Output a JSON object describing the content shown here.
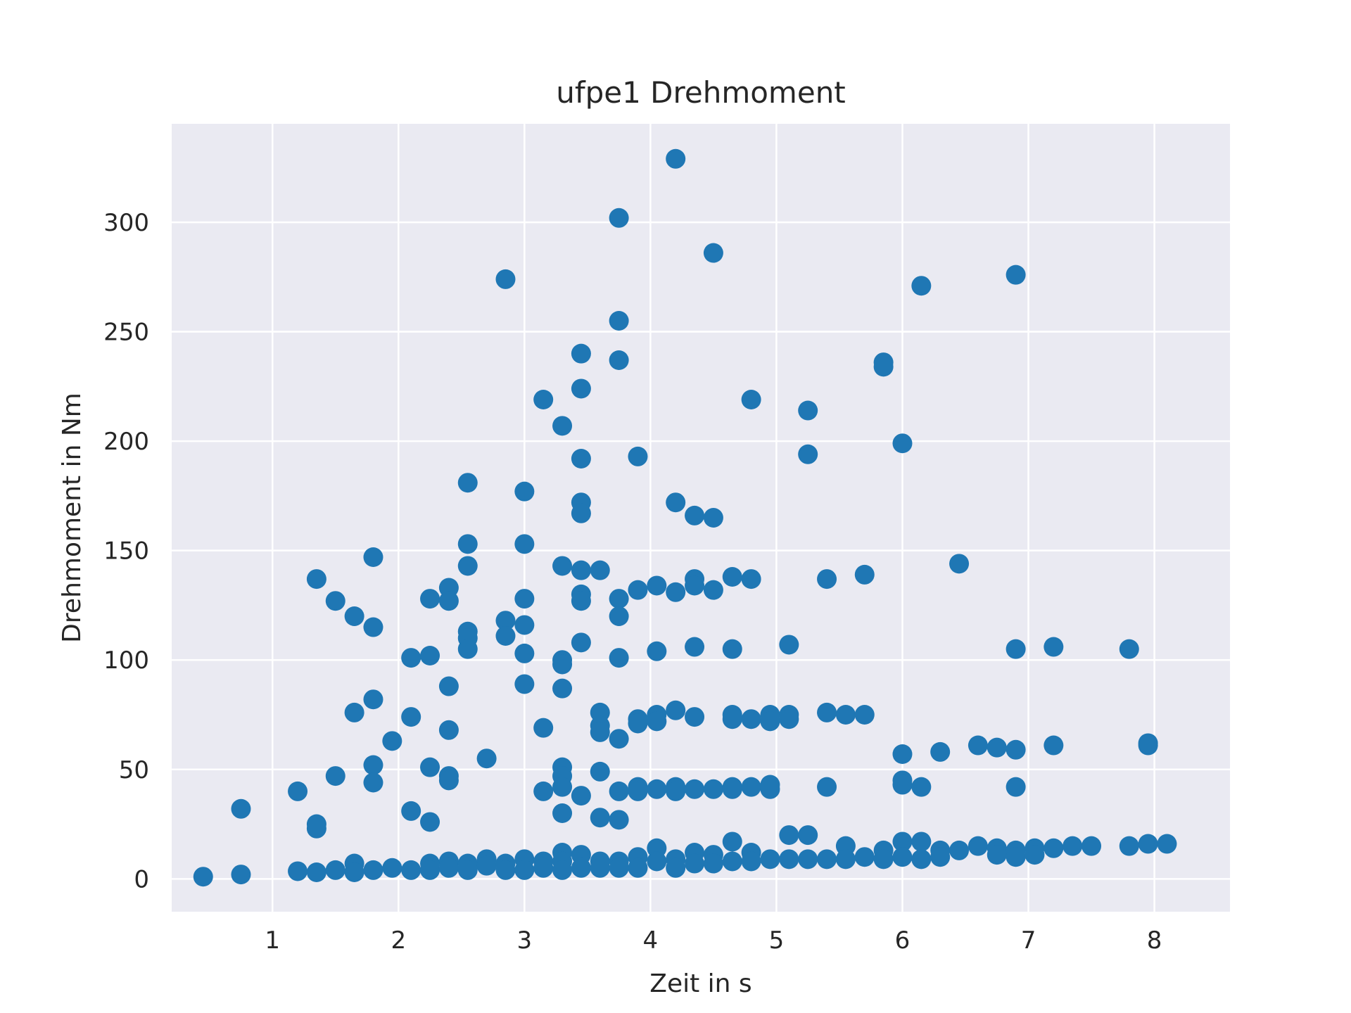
{
  "chart_data": {
    "type": "scatter",
    "title": "ufpe1 Drehmoment",
    "xlabel": "Zeit in s",
    "ylabel": "Drehmoment in Nm",
    "xlim": [
      0.2,
      8.6
    ],
    "ylim": [
      -15,
      345
    ],
    "xticks": [
      1,
      2,
      3,
      4,
      5,
      6,
      7,
      8
    ],
    "yticks": [
      0,
      50,
      100,
      150,
      200,
      250,
      300
    ],
    "grid": true,
    "background": "#eaeaf2",
    "grid_color": "#ffffff",
    "marker_color": "#1f77b4",
    "series": [
      {
        "points": [
          [
            0.45,
            1
          ],
          [
            0.75,
            32
          ],
          [
            0.75,
            2
          ],
          [
            1.2,
            40
          ],
          [
            1.2,
            3.5
          ],
          [
            1.35,
            137
          ],
          [
            1.35,
            25
          ],
          [
            1.35,
            23
          ],
          [
            1.35,
            3
          ],
          [
            1.5,
            127
          ],
          [
            1.5,
            47
          ],
          [
            1.5,
            4
          ],
          [
            1.65,
            120
          ],
          [
            1.65,
            76
          ],
          [
            1.65,
            7
          ],
          [
            1.65,
            3
          ],
          [
            1.8,
            147
          ],
          [
            1.8,
            115
          ],
          [
            1.8,
            82
          ],
          [
            1.8,
            52
          ],
          [
            1.8,
            44
          ],
          [
            1.8,
            4
          ],
          [
            1.95,
            63
          ],
          [
            1.95,
            5
          ],
          [
            2.1,
            101
          ],
          [
            2.1,
            74
          ],
          [
            2.1,
            31
          ],
          [
            2.1,
            4
          ],
          [
            2.25,
            128
          ],
          [
            2.25,
            102
          ],
          [
            2.25,
            51
          ],
          [
            2.25,
            26
          ],
          [
            2.25,
            7
          ],
          [
            2.25,
            4
          ],
          [
            2.4,
            133
          ],
          [
            2.4,
            127
          ],
          [
            2.4,
            88
          ],
          [
            2.4,
            68
          ],
          [
            2.4,
            47
          ],
          [
            2.4,
            45
          ],
          [
            2.4,
            8
          ],
          [
            2.4,
            5
          ],
          [
            2.55,
            181
          ],
          [
            2.55,
            153
          ],
          [
            2.55,
            143
          ],
          [
            2.55,
            113
          ],
          [
            2.55,
            110
          ],
          [
            2.55,
            105
          ],
          [
            2.55,
            7
          ],
          [
            2.55,
            4
          ],
          [
            2.7,
            55
          ],
          [
            2.7,
            9
          ],
          [
            2.7,
            6
          ],
          [
            2.85,
            274
          ],
          [
            2.85,
            118
          ],
          [
            2.85,
            111
          ],
          [
            2.85,
            7
          ],
          [
            2.85,
            4
          ],
          [
            3.0,
            177
          ],
          [
            3.0,
            153
          ],
          [
            3.0,
            128
          ],
          [
            3.0,
            116
          ],
          [
            3.0,
            103
          ],
          [
            3.0,
            89
          ],
          [
            3.0,
            9
          ],
          [
            3.0,
            4
          ],
          [
            3.15,
            219
          ],
          [
            3.15,
            69
          ],
          [
            3.15,
            40
          ],
          [
            3.15,
            8
          ],
          [
            3.15,
            5
          ],
          [
            3.3,
            207
          ],
          [
            3.3,
            143
          ],
          [
            3.3,
            100
          ],
          [
            3.3,
            98
          ],
          [
            3.3,
            87
          ],
          [
            3.3,
            51
          ],
          [
            3.3,
            47
          ],
          [
            3.3,
            42
          ],
          [
            3.3,
            30
          ],
          [
            3.3,
            12
          ],
          [
            3.3,
            8
          ],
          [
            3.3,
            4
          ],
          [
            3.45,
            240
          ],
          [
            3.45,
            224
          ],
          [
            3.45,
            192
          ],
          [
            3.45,
            172
          ],
          [
            3.45,
            167
          ],
          [
            3.45,
            141
          ],
          [
            3.45,
            130
          ],
          [
            3.45,
            127
          ],
          [
            3.45,
            108
          ],
          [
            3.45,
            38
          ],
          [
            3.45,
            11
          ],
          [
            3.45,
            5
          ],
          [
            3.6,
            141
          ],
          [
            3.6,
            76
          ],
          [
            3.6,
            70
          ],
          [
            3.6,
            67
          ],
          [
            3.6,
            49
          ],
          [
            3.6,
            28
          ],
          [
            3.6,
            8
          ],
          [
            3.6,
            5
          ],
          [
            3.75,
            302
          ],
          [
            3.75,
            255
          ],
          [
            3.75,
            237
          ],
          [
            3.75,
            128
          ],
          [
            3.75,
            120
          ],
          [
            3.75,
            101
          ],
          [
            3.75,
            64
          ],
          [
            3.75,
            40
          ],
          [
            3.75,
            27
          ],
          [
            3.75,
            8
          ],
          [
            3.75,
            5
          ],
          [
            3.9,
            193
          ],
          [
            3.9,
            132
          ],
          [
            3.9,
            73
          ],
          [
            3.9,
            71
          ],
          [
            3.9,
            42
          ],
          [
            3.9,
            40
          ],
          [
            3.9,
            10
          ],
          [
            3.9,
            5
          ],
          [
            4.05,
            134
          ],
          [
            4.05,
            104
          ],
          [
            4.05,
            75
          ],
          [
            4.05,
            72
          ],
          [
            4.05,
            41
          ],
          [
            4.05,
            14
          ],
          [
            4.05,
            8
          ],
          [
            4.2,
            329
          ],
          [
            4.2,
            172
          ],
          [
            4.2,
            131
          ],
          [
            4.2,
            77
          ],
          [
            4.2,
            42
          ],
          [
            4.2,
            40
          ],
          [
            4.2,
            9
          ],
          [
            4.2,
            5
          ],
          [
            4.35,
            166
          ],
          [
            4.35,
            137
          ],
          [
            4.35,
            134
          ],
          [
            4.35,
            106
          ],
          [
            4.35,
            74
          ],
          [
            4.35,
            41
          ],
          [
            4.35,
            12
          ],
          [
            4.35,
            7
          ],
          [
            4.5,
            286
          ],
          [
            4.5,
            165
          ],
          [
            4.5,
            132
          ],
          [
            4.5,
            41
          ],
          [
            4.5,
            11
          ],
          [
            4.5,
            7
          ],
          [
            4.65,
            138
          ],
          [
            4.65,
            105
          ],
          [
            4.65,
            75
          ],
          [
            4.65,
            73
          ],
          [
            4.65,
            42
          ],
          [
            4.65,
            41
          ],
          [
            4.65,
            17
          ],
          [
            4.65,
            8
          ],
          [
            4.8,
            219
          ],
          [
            4.8,
            137
          ],
          [
            4.8,
            73
          ],
          [
            4.8,
            42
          ],
          [
            4.8,
            12
          ],
          [
            4.8,
            8
          ],
          [
            4.95,
            75
          ],
          [
            4.95,
            72
          ],
          [
            4.95,
            43
          ],
          [
            4.95,
            41
          ],
          [
            4.95,
            9
          ],
          [
            5.1,
            107
          ],
          [
            5.1,
            75
          ],
          [
            5.1,
            73
          ],
          [
            5.1,
            20
          ],
          [
            5.1,
            9
          ],
          [
            5.25,
            214
          ],
          [
            5.25,
            194
          ],
          [
            5.25,
            20
          ],
          [
            5.25,
            9
          ],
          [
            5.4,
            137
          ],
          [
            5.4,
            76
          ],
          [
            5.4,
            42
          ],
          [
            5.4,
            9
          ],
          [
            5.55,
            75
          ],
          [
            5.55,
            15
          ],
          [
            5.55,
            9
          ],
          [
            5.7,
            139
          ],
          [
            5.7,
            75
          ],
          [
            5.7,
            10
          ],
          [
            5.85,
            236
          ],
          [
            5.85,
            234
          ],
          [
            5.85,
            13
          ],
          [
            5.85,
            9
          ],
          [
            6.0,
            199
          ],
          [
            6.0,
            57
          ],
          [
            6.0,
            45
          ],
          [
            6.0,
            43
          ],
          [
            6.0,
            17
          ],
          [
            6.0,
            10
          ],
          [
            6.15,
            271
          ],
          [
            6.15,
            42
          ],
          [
            6.15,
            17
          ],
          [
            6.15,
            9
          ],
          [
            6.3,
            58
          ],
          [
            6.3,
            13
          ],
          [
            6.3,
            10
          ],
          [
            6.45,
            144
          ],
          [
            6.45,
            13
          ],
          [
            6.6,
            61
          ],
          [
            6.6,
            15
          ],
          [
            6.75,
            60
          ],
          [
            6.75,
            14
          ],
          [
            6.75,
            11
          ],
          [
            6.9,
            276
          ],
          [
            6.9,
            105
          ],
          [
            6.9,
            59
          ],
          [
            6.9,
            42
          ],
          [
            6.9,
            13
          ],
          [
            6.9,
            10
          ],
          [
            7.05,
            14
          ],
          [
            7.05,
            11
          ],
          [
            7.2,
            106
          ],
          [
            7.2,
            61
          ],
          [
            7.2,
            14
          ],
          [
            7.35,
            15
          ],
          [
            7.5,
            15
          ],
          [
            7.8,
            105
          ],
          [
            7.8,
            15
          ],
          [
            7.95,
            62
          ],
          [
            7.95,
            61
          ],
          [
            7.95,
            16
          ],
          [
            8.1,
            16
          ]
        ]
      }
    ]
  }
}
